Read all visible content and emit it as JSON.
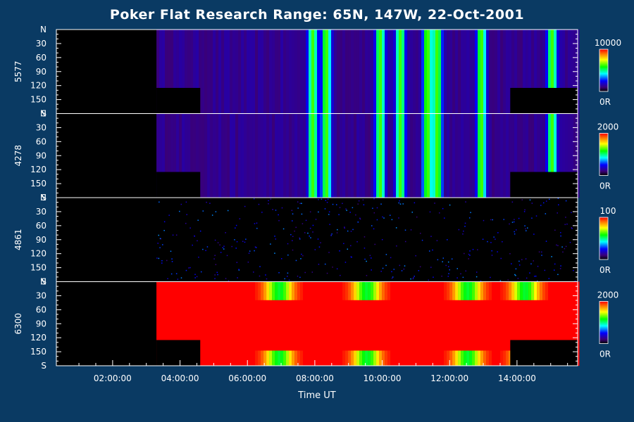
{
  "title": "Poker Flat Research Range: 65N, 147W, 22-Oct-2001",
  "chart_data": {
    "type": "heatmap",
    "title": "Poker Flat Research Range: 65N, 147W, 22-Oct-2001",
    "xlabel": "Time UT",
    "x_ticks": [
      "02:00:00",
      "04:00:00",
      "06:00:00",
      "08:00:00",
      "10:00:00",
      "12:00:00",
      "14:00:00"
    ],
    "x_tick_hours": [
      2,
      4,
      6,
      8,
      10,
      12,
      14
    ],
    "xlim_hours": [
      0.33,
      15.8
    ],
    "y_tick_labels": [
      "N",
      "30",
      "60",
      "90",
      "120",
      "150",
      "S"
    ],
    "y_tick_values": [
      0,
      30,
      60,
      90,
      120,
      150,
      180
    ],
    "panels": [
      {
        "name": "5577",
        "cbar_max": "10000",
        "cbar_min": "0R",
        "data_start_hour": 3.3,
        "bottom_gap_end_hour": 4.6,
        "bottom_gap_from_deg": 125,
        "end_gap_start_hour": 13.8,
        "end_gap_from_deg": 125,
        "style": "banded",
        "bright_bands_hours": [
          7.9,
          8.3,
          9.9,
          10.5,
          11.3,
          11.6,
          12.9,
          15.0
        ]
      },
      {
        "name": "4278",
        "cbar_max": "2000",
        "cbar_min": "0R",
        "data_start_hour": 3.3,
        "bottom_gap_end_hour": 4.6,
        "bottom_gap_from_deg": 125,
        "end_gap_start_hour": 13.8,
        "end_gap_from_deg": 125,
        "style": "banded",
        "bright_bands_hours": [
          7.9,
          8.3,
          9.9,
          10.5,
          11.3,
          11.6,
          12.9,
          15.0
        ]
      },
      {
        "name": "4861",
        "cbar_max": "100",
        "cbar_min": "0R",
        "data_start_hour": 3.3,
        "style": "noise"
      },
      {
        "name": "6300",
        "cbar_max": "2000",
        "cbar_min": "0R",
        "data_start_hour": 3.3,
        "bottom_gap_end_hour": 4.6,
        "bottom_gap_from_deg": 125,
        "end_gap_start_hour": 13.8,
        "end_gap_from_deg": 125,
        "style": "saturated",
        "dip_centers_hours": [
          6.9,
          9.5,
          12.5,
          14.2
        ]
      }
    ]
  }
}
